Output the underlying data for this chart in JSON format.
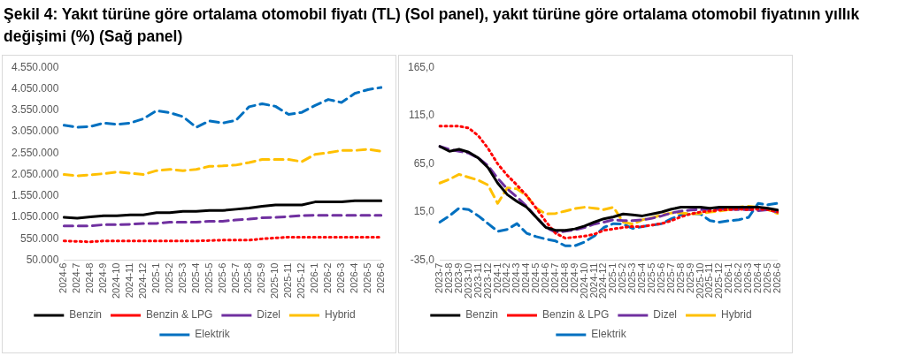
{
  "chart_data": [
    {
      "type": "line",
      "title": "Şekil 4: Yakıt türüne göre ortalama otomobil fiyatı (TL) (Sol panel), yakıt türüne göre ortalama otomobil fiyatının yıllık değişimi (%) (Sağ panel)",
      "categories": [
        "2024-6",
        "2024-7",
        "2024-8",
        "2024-9",
        "2024-10",
        "2024-11",
        "2024-12",
        "2025-1",
        "2025-2",
        "2025-3",
        "2025-4",
        "2025-5",
        "2025-6",
        "2025-7",
        "2025-8",
        "2025-9",
        "2025-10",
        "2025-11",
        "2025-12",
        "2026-1",
        "2026-2",
        "2026-3",
        "2026-4",
        "2026-5",
        "2026-6"
      ],
      "series": [
        {
          "name": "Benzin",
          "color": "#000000",
          "line_style": "solid",
          "values": [
            1050000,
            1030000,
            1060000,
            1090000,
            1090000,
            1110000,
            1110000,
            1160000,
            1160000,
            1190000,
            1190000,
            1210000,
            1210000,
            1240000,
            1270000,
            1310000,
            1340000,
            1340000,
            1340000,
            1410000,
            1410000,
            1410000,
            1440000,
            1440000,
            1440000
          ]
        },
        {
          "name": "Benzin & LPG",
          "color": "#ff0000",
          "line_style": "dotted",
          "values": [
            500000,
            490000,
            480000,
            500000,
            500000,
            500000,
            500000,
            500000,
            500000,
            500000,
            500000,
            510000,
            520000,
            520000,
            520000,
            550000,
            570000,
            590000,
            590000,
            590000,
            590000,
            590000,
            590000,
            590000,
            590000
          ]
        },
        {
          "name": "Dizel",
          "color": "#7030a0",
          "line_style": "dashed",
          "values": [
            850000,
            850000,
            850000,
            880000,
            880000,
            890000,
            910000,
            910000,
            940000,
            940000,
            940000,
            960000,
            960000,
            990000,
            1010000,
            1040000,
            1050000,
            1070000,
            1090000,
            1100000,
            1100000,
            1100000,
            1100000,
            1100000,
            1100000
          ]
        },
        {
          "name": "Hybrid",
          "color": "#ffc000",
          "line_style": "dashed",
          "values": [
            2050000,
            2020000,
            2040000,
            2070000,
            2110000,
            2080000,
            2050000,
            2140000,
            2170000,
            2140000,
            2170000,
            2240000,
            2250000,
            2270000,
            2330000,
            2400000,
            2400000,
            2400000,
            2350000,
            2520000,
            2560000,
            2610000,
            2610000,
            2640000,
            2590000
          ]
        },
        {
          "name": "Elektrik",
          "color": "#0070c0",
          "line_style": "dashed",
          "values": [
            3200000,
            3150000,
            3170000,
            3250000,
            3220000,
            3250000,
            3350000,
            3540000,
            3490000,
            3400000,
            3150000,
            3300000,
            3250000,
            3310000,
            3630000,
            3700000,
            3640000,
            3450000,
            3500000,
            3660000,
            3800000,
            3730000,
            3940000,
            4030000,
            4080000
          ]
        }
      ],
      "ylim": [
        50000,
        4550000
      ],
      "yticks": [
        {
          "value": 50000,
          "label": "50.000"
        },
        {
          "value": 550000,
          "label": "550.000"
        },
        {
          "value": 1050000,
          "label": "1.050.000"
        },
        {
          "value": 1550000,
          "label": "1.550.000"
        },
        {
          "value": 2050000,
          "label": "2.050.000"
        },
        {
          "value": 2550000,
          "label": "2.550.000"
        },
        {
          "value": 3050000,
          "label": "3.050.000"
        },
        {
          "value": 3550000,
          "label": "3.550.000"
        },
        {
          "value": 4050000,
          "label": "4.050.000"
        },
        {
          "value": 4550000,
          "label": "4.550.000"
        }
      ],
      "grid": false,
      "legend": "bottom"
    },
    {
      "type": "line",
      "categories": [
        "2023-7",
        "2023-8",
        "2023-9",
        "2023-10",
        "2023-11",
        "2023-12",
        "2024-1",
        "2024-2",
        "2024-3",
        "2024-4",
        "2024-5",
        "2024-6",
        "2024-7",
        "2024-8",
        "2024-9",
        "2024-10",
        "2024-11",
        "2024-12",
        "2025-1",
        "2025-2",
        "2025-3",
        "2025-4",
        "2025-5",
        "2025-6",
        "2025-7",
        "2025-8",
        "2025-9",
        "2025-10",
        "2025-11",
        "2025-12",
        "2026-1",
        "2026-2",
        "2026-3",
        "2026-4",
        "2026-5",
        "2026-6"
      ],
      "series": [
        {
          "name": "Benzin",
          "color": "#000000",
          "line_style": "solid",
          "values": [
            83,
            78,
            80,
            77,
            71,
            61,
            45,
            33,
            26,
            20,
            9.5,
            -1,
            -4,
            -4,
            -2.5,
            0.5,
            4.5,
            8,
            10,
            13,
            12,
            11,
            13,
            15,
            18,
            20,
            20,
            20,
            19,
            20,
            20,
            20,
            20,
            20,
            19,
            17
          ]
        },
        {
          "name": "Benzin & LPG",
          "color": "#ff0000",
          "line_style": "dotted",
          "values": [
            104,
            104,
            104,
            102,
            94,
            81,
            65,
            53,
            43,
            32,
            19,
            5,
            -7,
            -12,
            -11,
            -10,
            -8,
            -4,
            -2.5,
            -1,
            0,
            0,
            1.5,
            3,
            6,
            10,
            13,
            15,
            16,
            17,
            17.5,
            18,
            17.5,
            18,
            17.5,
            15
          ]
        },
        {
          "name": "Dizel",
          "color": "#7030a0",
          "line_style": "dashed",
          "values": [
            83,
            80,
            78,
            76,
            71,
            63,
            50,
            39,
            30.5,
            21,
            9.5,
            -1,
            -6,
            -5,
            -3.5,
            -1,
            2.5,
            4.5,
            7,
            6,
            6,
            7,
            8.5,
            11,
            14,
            16,
            17,
            17.5,
            17.5,
            18,
            18,
            17.5,
            17.5,
            16.5,
            17.5,
            15
          ]
        },
        {
          "name": "Hybrid",
          "color": "#ffc000",
          "line_style": "dashed",
          "values": [
            45,
            49,
            54,
            51,
            48,
            43,
            24,
            40,
            39,
            32,
            19,
            13,
            13.5,
            16,
            18.5,
            20,
            19,
            17.5,
            20,
            4.5,
            2.5,
            7,
            9,
            12,
            14,
            14,
            13,
            13.5,
            15,
            16,
            17.5,
            20,
            21,
            20,
            17.5,
            13.5
          ]
        },
        {
          "name": "Elektrik",
          "color": "#0070c0",
          "line_style": "dashed",
          "values": [
            4.5,
            11,
            19,
            17.5,
            11,
            3,
            -5,
            -3,
            3,
            -7,
            -10.5,
            -13,
            -15,
            -20,
            -20,
            -16,
            -10,
            -1,
            3,
            2.5,
            -2,
            0,
            1.5,
            3,
            8,
            12,
            13.5,
            13,
            6,
            4.5,
            6,
            7,
            9.5,
            24,
            22.5,
            24
          ]
        }
      ],
      "ylim": [
        -35,
        165
      ],
      "yticks": [
        {
          "value": -35,
          "label": "-35,0"
        },
        {
          "value": 15,
          "label": "15,0"
        },
        {
          "value": 65,
          "label": "65,0"
        },
        {
          "value": 115,
          "label": "115,0"
        },
        {
          "value": 165,
          "label": "165,0"
        }
      ],
      "grid": false,
      "legend": "bottom"
    }
  ]
}
